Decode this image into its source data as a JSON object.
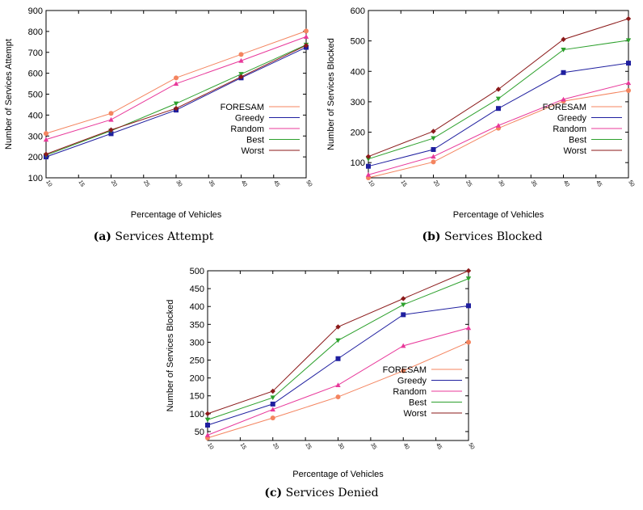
{
  "chart_data": [
    {
      "type": "line",
      "caption_letter": "(a)",
      "caption_text": "Services Attempt",
      "xlabel": "Percentage of Vehicles",
      "ylabel": "Number of Services Attempt",
      "x": [
        10,
        20,
        30,
        40,
        50
      ],
      "xticks": [
        "10",
        "15",
        "20",
        "25",
        "30",
        "35",
        "40",
        "45",
        "50"
      ],
      "ylim": [
        100,
        900
      ],
      "yticks": [
        100,
        200,
        300,
        400,
        500,
        600,
        700,
        800,
        900
      ],
      "legend_position": "bottom-right",
      "grid": false,
      "series": [
        {
          "name": "FORESAM",
          "color": "#f4845f",
          "marker": "circle",
          "values": [
            312,
            408,
            578,
            690,
            802
          ]
        },
        {
          "name": "Greedy",
          "color": "#1f1f9f",
          "marker": "square",
          "values": [
            200,
            311,
            424,
            578,
            724
          ]
        },
        {
          "name": "Random",
          "color": "#e8389a",
          "marker": "triangle",
          "values": [
            283,
            378,
            550,
            660,
            775
          ]
        },
        {
          "name": "Best",
          "color": "#2ca02c",
          "marker": "tridown",
          "values": [
            208,
            325,
            455,
            596,
            736
          ]
        },
        {
          "name": "Worst",
          "color": "#8b1a1a",
          "marker": "diamond",
          "values": [
            213,
            329,
            432,
            583,
            733
          ]
        }
      ]
    },
    {
      "type": "line",
      "caption_letter": "(b)",
      "caption_text": "Services Blocked",
      "xlabel": "Percentage of Vehicles",
      "ylabel": "Number of Services Blocked",
      "x": [
        10,
        20,
        30,
        40,
        50
      ],
      "xticks": [
        "10",
        "15",
        "20",
        "25",
        "30",
        "35",
        "40",
        "45",
        "50"
      ],
      "ylim": [
        50,
        600
      ],
      "yticks": [
        100,
        200,
        300,
        400,
        500,
        600
      ],
      "legend_position": "bottom-right",
      "grid": false,
      "series": [
        {
          "name": "FORESAM",
          "color": "#f4845f",
          "marker": "circle",
          "values": [
            50,
            102,
            213,
            302,
            337
          ]
        },
        {
          "name": "Greedy",
          "color": "#1f1f9f",
          "marker": "square",
          "values": [
            88,
            143,
            278,
            396,
            427
          ]
        },
        {
          "name": "Random",
          "color": "#e8389a",
          "marker": "triangle",
          "values": [
            60,
            120,
            222,
            308,
            362
          ]
        },
        {
          "name": "Best",
          "color": "#2ca02c",
          "marker": "tridown",
          "values": [
            112,
            180,
            310,
            471,
            502
          ]
        },
        {
          "name": "Worst",
          "color": "#8b1a1a",
          "marker": "diamond",
          "values": [
            120,
            203,
            341,
            505,
            573
          ]
        }
      ]
    },
    {
      "type": "line",
      "caption_letter": "(c)",
      "caption_text": "Services Denied",
      "xlabel": "Percentage of Vehicles",
      "ylabel": "Number of Services Blocked",
      "x": [
        10,
        20,
        30,
        40,
        50
      ],
      "xticks": [
        "10",
        "15",
        "20",
        "25",
        "30",
        "35",
        "40",
        "45",
        "50"
      ],
      "ylim": [
        25,
        500
      ],
      "yticks": [
        50,
        100,
        150,
        200,
        250,
        300,
        350,
        400,
        450,
        500
      ],
      "legend_position": "bottom-right",
      "grid": false,
      "series": [
        {
          "name": "FORESAM",
          "color": "#f4845f",
          "marker": "circle",
          "values": [
            32,
            88,
            147,
            220,
            300
          ]
        },
        {
          "name": "Greedy",
          "color": "#1f1f9f",
          "marker": "square",
          "values": [
            68,
            127,
            254,
            377,
            402
          ]
        },
        {
          "name": "Random",
          "color": "#e8389a",
          "marker": "triangle",
          "values": [
            40,
            112,
            180,
            290,
            340
          ]
        },
        {
          "name": "Best",
          "color": "#2ca02c",
          "marker": "tridown",
          "values": [
            83,
            145,
            305,
            405,
            478
          ]
        },
        {
          "name": "Worst",
          "color": "#8b1a1a",
          "marker": "diamond",
          "values": [
            100,
            163,
            343,
            422,
            500
          ]
        }
      ]
    }
  ]
}
